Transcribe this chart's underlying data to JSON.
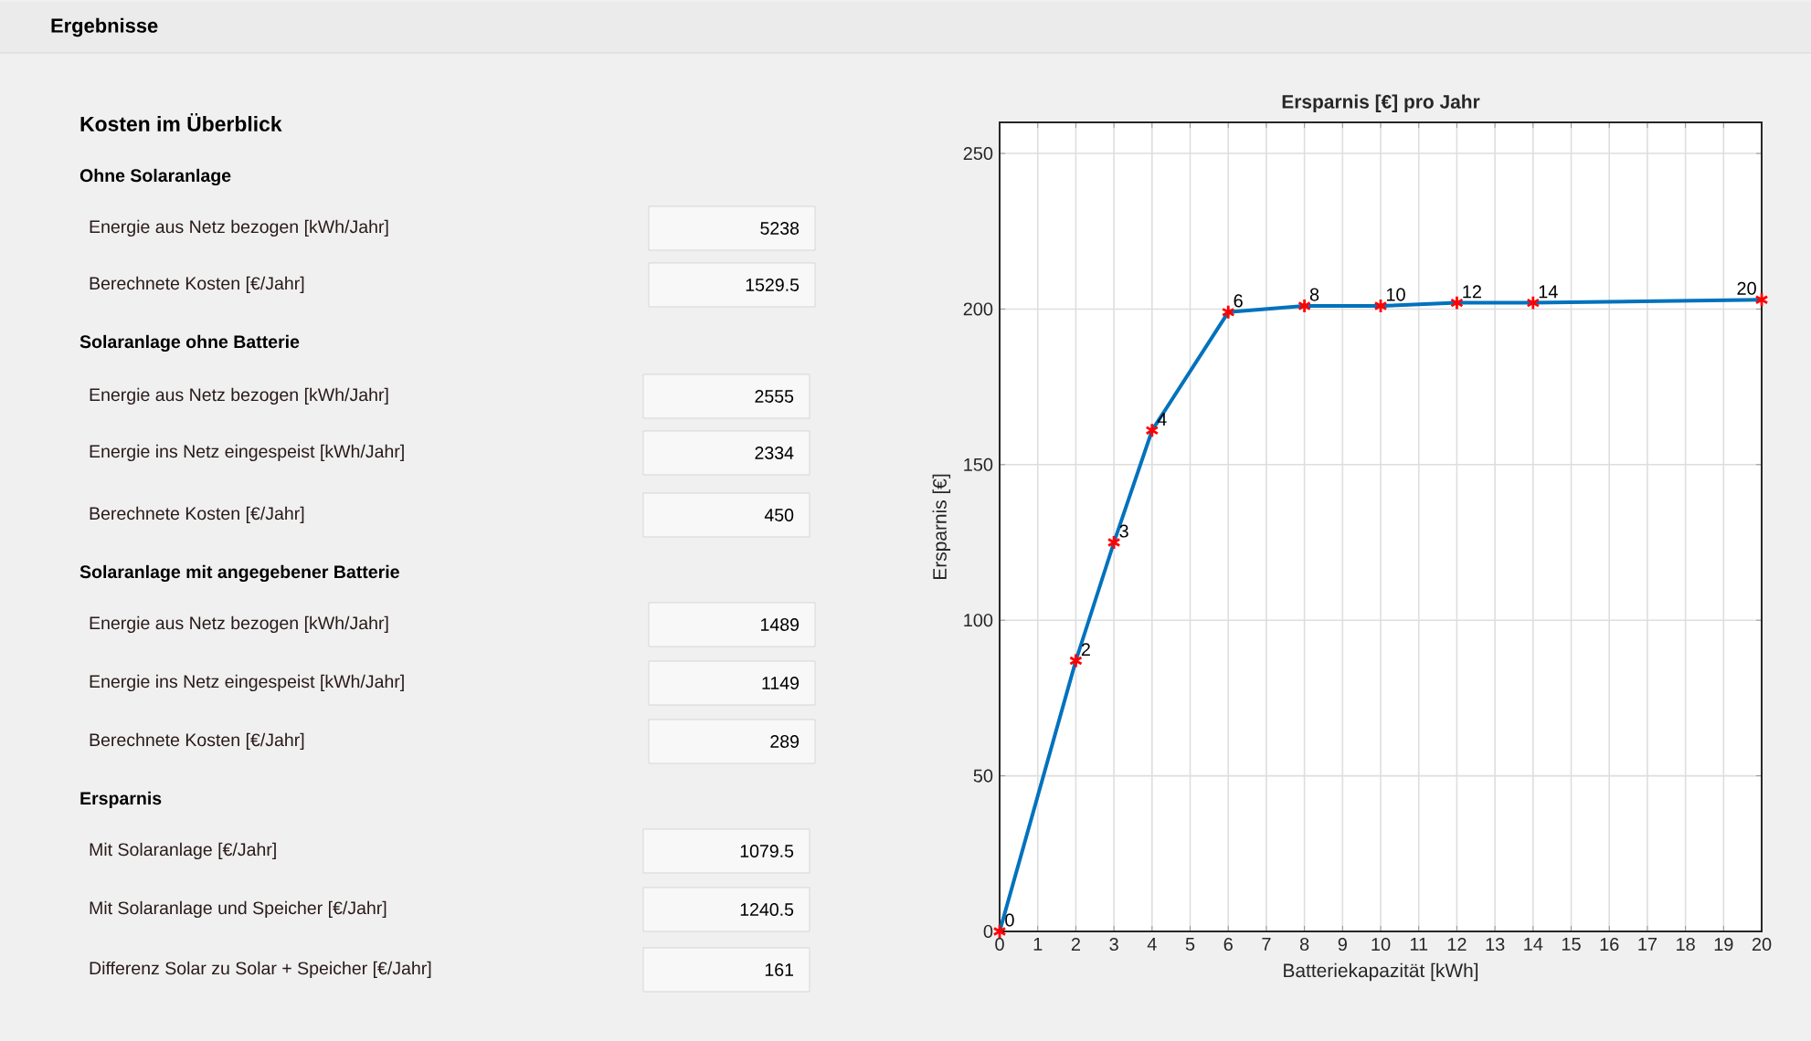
{
  "chart_data": [
    {
      "type": "other",
      "title": "Ergebnisse",
      "subtitle": "Kosten im Überblick",
      "annotations": [
        "Ohne Solaranlage",
        "Energie aus Netz bezogen [kWh/Jahr]",
        "5238",
        "Berechnete Kosten [€/Jahr]",
        "1529.5",
        "Solaranlage ohne Batterie",
        "Energie aus Netz bezogen [kWh/Jahr]",
        "2555",
        "Energie ins Netz eingespeist [kWh/Jahr]",
        "2334",
        "Berechnete Kosten [€/Jahr]",
        "450",
        "Solaranlage mit angegebener Batterie",
        "Energie aus Netz bezogen [kWh/Jahr]",
        "1489",
        "Energie ins Netz eingespeist [kWh/Jahr]",
        "1149",
        "Berechnete Kosten [€/Jahr]",
        "289",
        "Ersparnis",
        "Mit Solaranlage   [€/Jahr]",
        "1079.5",
        "Mit Solaranlage und Speicher   [€/Jahr]",
        "1240.5",
        "Differenz Solar zu Solar + Speicher   [€/Jahr]",
        "161"
      ]
    },
    {
      "type": "line",
      "title": "Ersparnis [€] pro Jahr",
      "xlabel": "Batteriekapazität [kWh]",
      "ylabel": "Ersparnis [€]",
      "x": [
        0,
        2,
        3,
        4,
        6,
        8,
        10,
        12,
        14,
        20
      ],
      "series": [
        {
          "type": "line",
          "color": "#0072bd",
          "marker": "none",
          "values": [
            0,
            87,
            125,
            161,
            199,
            201,
            201,
            202,
            202,
            203
          ]
        },
        {
          "type": "scatter",
          "color": "#ff0000",
          "values": [
            0,
            87,
            125,
            161,
            199,
            201,
            201,
            202,
            202,
            203
          ]
        }
      ],
      "marker": "cross",
      "line_style": "solid",
      "grid": true,
      "xlim": [
        0,
        20
      ],
      "xticks": [
        0,
        1,
        2,
        3,
        4,
        5,
        6,
        7,
        8,
        9,
        10,
        11,
        12,
        13,
        14,
        15,
        16,
        17,
        18,
        19,
        20
      ],
      "ylim": [
        0,
        260
      ],
      "yticks": [
        0,
        50,
        100,
        150,
        200,
        250
      ],
      "annotations": [
        {
          "text": "0",
          "x": 0,
          "y": 0
        },
        {
          "text": "2",
          "x": 2,
          "y": 87
        },
        {
          "text": "3",
          "x": 3,
          "y": 125
        },
        {
          "text": "4",
          "x": 4,
          "y": 161
        },
        {
          "text": "6",
          "x": 6,
          "y": 199
        },
        {
          "text": "8",
          "x": 8,
          "y": 201
        },
        {
          "text": "10",
          "x": 10,
          "y": 201
        },
        {
          "text": "12",
          "x": 12,
          "y": 202
        },
        {
          "text": "14",
          "x": 14,
          "y": 202
        },
        {
          "text": "20",
          "x": 20,
          "y": 203
        }
      ]
    }
  ]
}
